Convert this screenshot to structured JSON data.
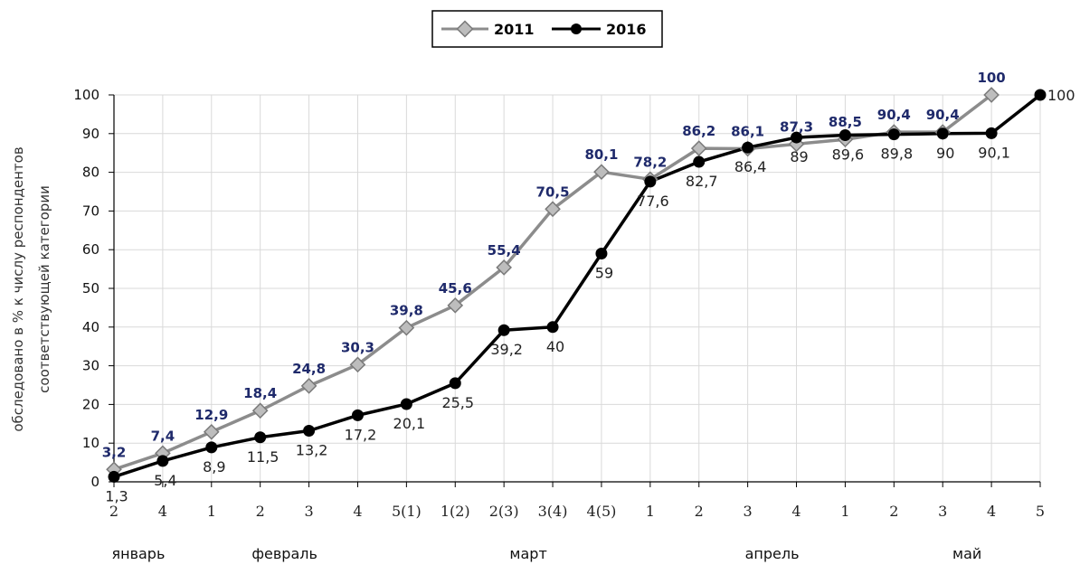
{
  "chart_data": {
    "type": "line",
    "ylabel_line1": "обследовано в % к числу респондентов",
    "ylabel_line2": "соответствующей категории",
    "ylim": [
      0,
      100
    ],
    "yticks": [
      "0",
      "10",
      "20",
      "30",
      "40",
      "50",
      "60",
      "70",
      "80",
      "90",
      "100"
    ],
    "categories": [
      "2",
      "4",
      "1",
      "2",
      "3",
      "4",
      "5(1)",
      "1(2)",
      "2(3)",
      "3(4)",
      "4(5)",
      "1",
      "2",
      "3",
      "4",
      "1",
      "2",
      "3",
      "4",
      "5"
    ],
    "months": [
      {
        "name": "январь",
        "index": 0.5
      },
      {
        "name": "февраль",
        "index": 3.5
      },
      {
        "name": "март",
        "index": 8.5
      },
      {
        "name": "апрель",
        "index": 13.5
      },
      {
        "name": "май",
        "index": 17.5
      }
    ],
    "legend_position": "top-center",
    "grid": true,
    "series": [
      {
        "name": "2011",
        "color": "#8c8c8c",
        "marker": "diamond",
        "values": [
          3.2,
          7.4,
          12.9,
          18.4,
          24.8,
          30.3,
          39.8,
          45.6,
          55.4,
          70.5,
          80.1,
          78.2,
          86.2,
          86.1,
          87.3,
          88.5,
          90.4,
          90.4,
          100,
          null
        ],
        "labels": [
          "3,2",
          "7,4",
          "12,9",
          "18,4",
          "24,8",
          "30,3",
          "39,8",
          "45,6",
          "55,4",
          "70,5",
          "80,1",
          "78,2",
          "86,2",
          "86,1",
          "87,3",
          "88,5",
          "90,4",
          "90,4",
          "100",
          ""
        ]
      },
      {
        "name": "2016",
        "color": "#000000",
        "marker": "circle",
        "values": [
          1.3,
          5.4,
          8.9,
          11.5,
          13.2,
          17.2,
          20.1,
          25.5,
          39.2,
          40,
          59,
          77.6,
          82.7,
          86.4,
          89,
          89.6,
          89.8,
          90,
          90.1,
          100
        ],
        "labels": [
          "1,3",
          "5,4",
          "8,9",
          "11,5",
          "13,2",
          "17,2",
          "20,1",
          "25,5",
          "39,2",
          "40",
          "59",
          "77,6",
          "82,7",
          "86,4",
          "89",
          "89,6",
          "89,8",
          "90",
          "90,1",
          "100"
        ]
      }
    ]
  }
}
